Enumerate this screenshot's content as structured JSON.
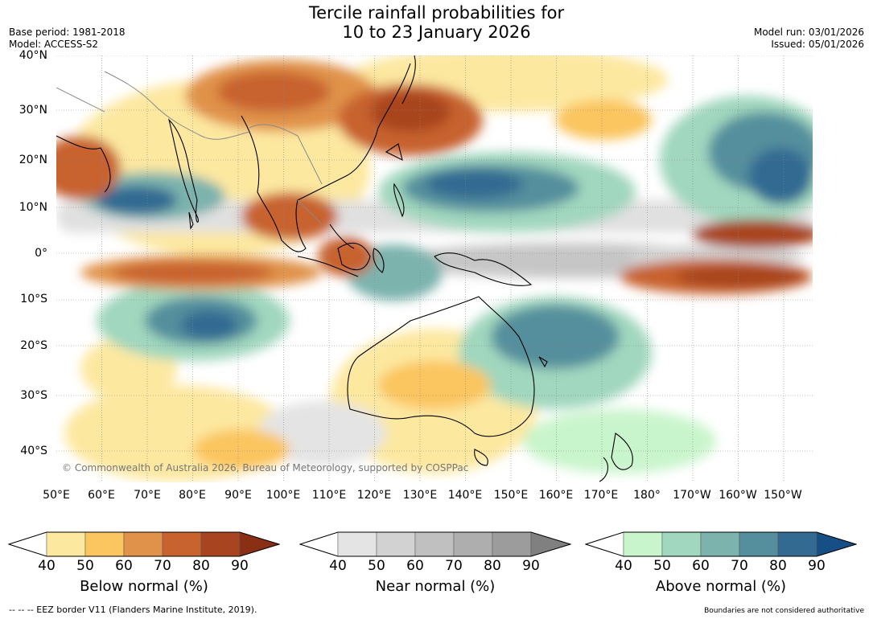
{
  "title": {
    "line1": "Tercile rainfall probabilities for",
    "line2": "10 to 23 January 2026"
  },
  "meta": {
    "base_period": "Base period: 1981-2018",
    "model": "Model: ACCESS-S2",
    "model_run": "Model run: 03/01/2026",
    "issued": "Issued: 05/01/2026"
  },
  "map": {
    "copyright": "© Commonwealth of Australia 2026, Bureau of Meteorology, supported by COSPPac",
    "lat_labels": [
      "40°N",
      "30°N",
      "20°N",
      "10°N",
      "0°",
      "10°S",
      "20°S",
      "30°S",
      "40°S"
    ],
    "lon_labels": [
      "50°E",
      "60°E",
      "70°E",
      "80°E",
      "90°E",
      "100°E",
      "110°E",
      "120°E",
      "130°E",
      "140°E",
      "150°E",
      "160°E",
      "170°E",
      "180°",
      "170°W",
      "160°W",
      "150°W"
    ]
  },
  "colorbars": [
    {
      "label": "Below normal (%)",
      "ticks": [
        "40",
        "50",
        "60",
        "70",
        "80",
        "90"
      ],
      "colors": [
        "#ffffff",
        "#fde8a0",
        "#fbc55f",
        "#e0924a",
        "#c8622f",
        "#a8441f",
        "#8a2e14"
      ]
    },
    {
      "label": "Near normal (%)",
      "ticks": [
        "40",
        "50",
        "60",
        "70",
        "80",
        "90"
      ],
      "colors": [
        "#ffffff",
        "#e4e4e4",
        "#d2d2d2",
        "#c0c0c0",
        "#aeaeae",
        "#9c9c9c",
        "#808080"
      ]
    },
    {
      "label": "Above normal (%)",
      "ticks": [
        "40",
        "50",
        "60",
        "70",
        "80",
        "90"
      ],
      "colors": [
        "#ffffff",
        "#c9f5cc",
        "#a0d7be",
        "#7cb3ad",
        "#558f9d",
        "#336a92",
        "#154f86"
      ]
    }
  ],
  "footer": {
    "left": "--  --  -- EEZ border V11 (Flanders Marine Institute, 2019).",
    "right": "Boundaries are not considered authoritative"
  }
}
